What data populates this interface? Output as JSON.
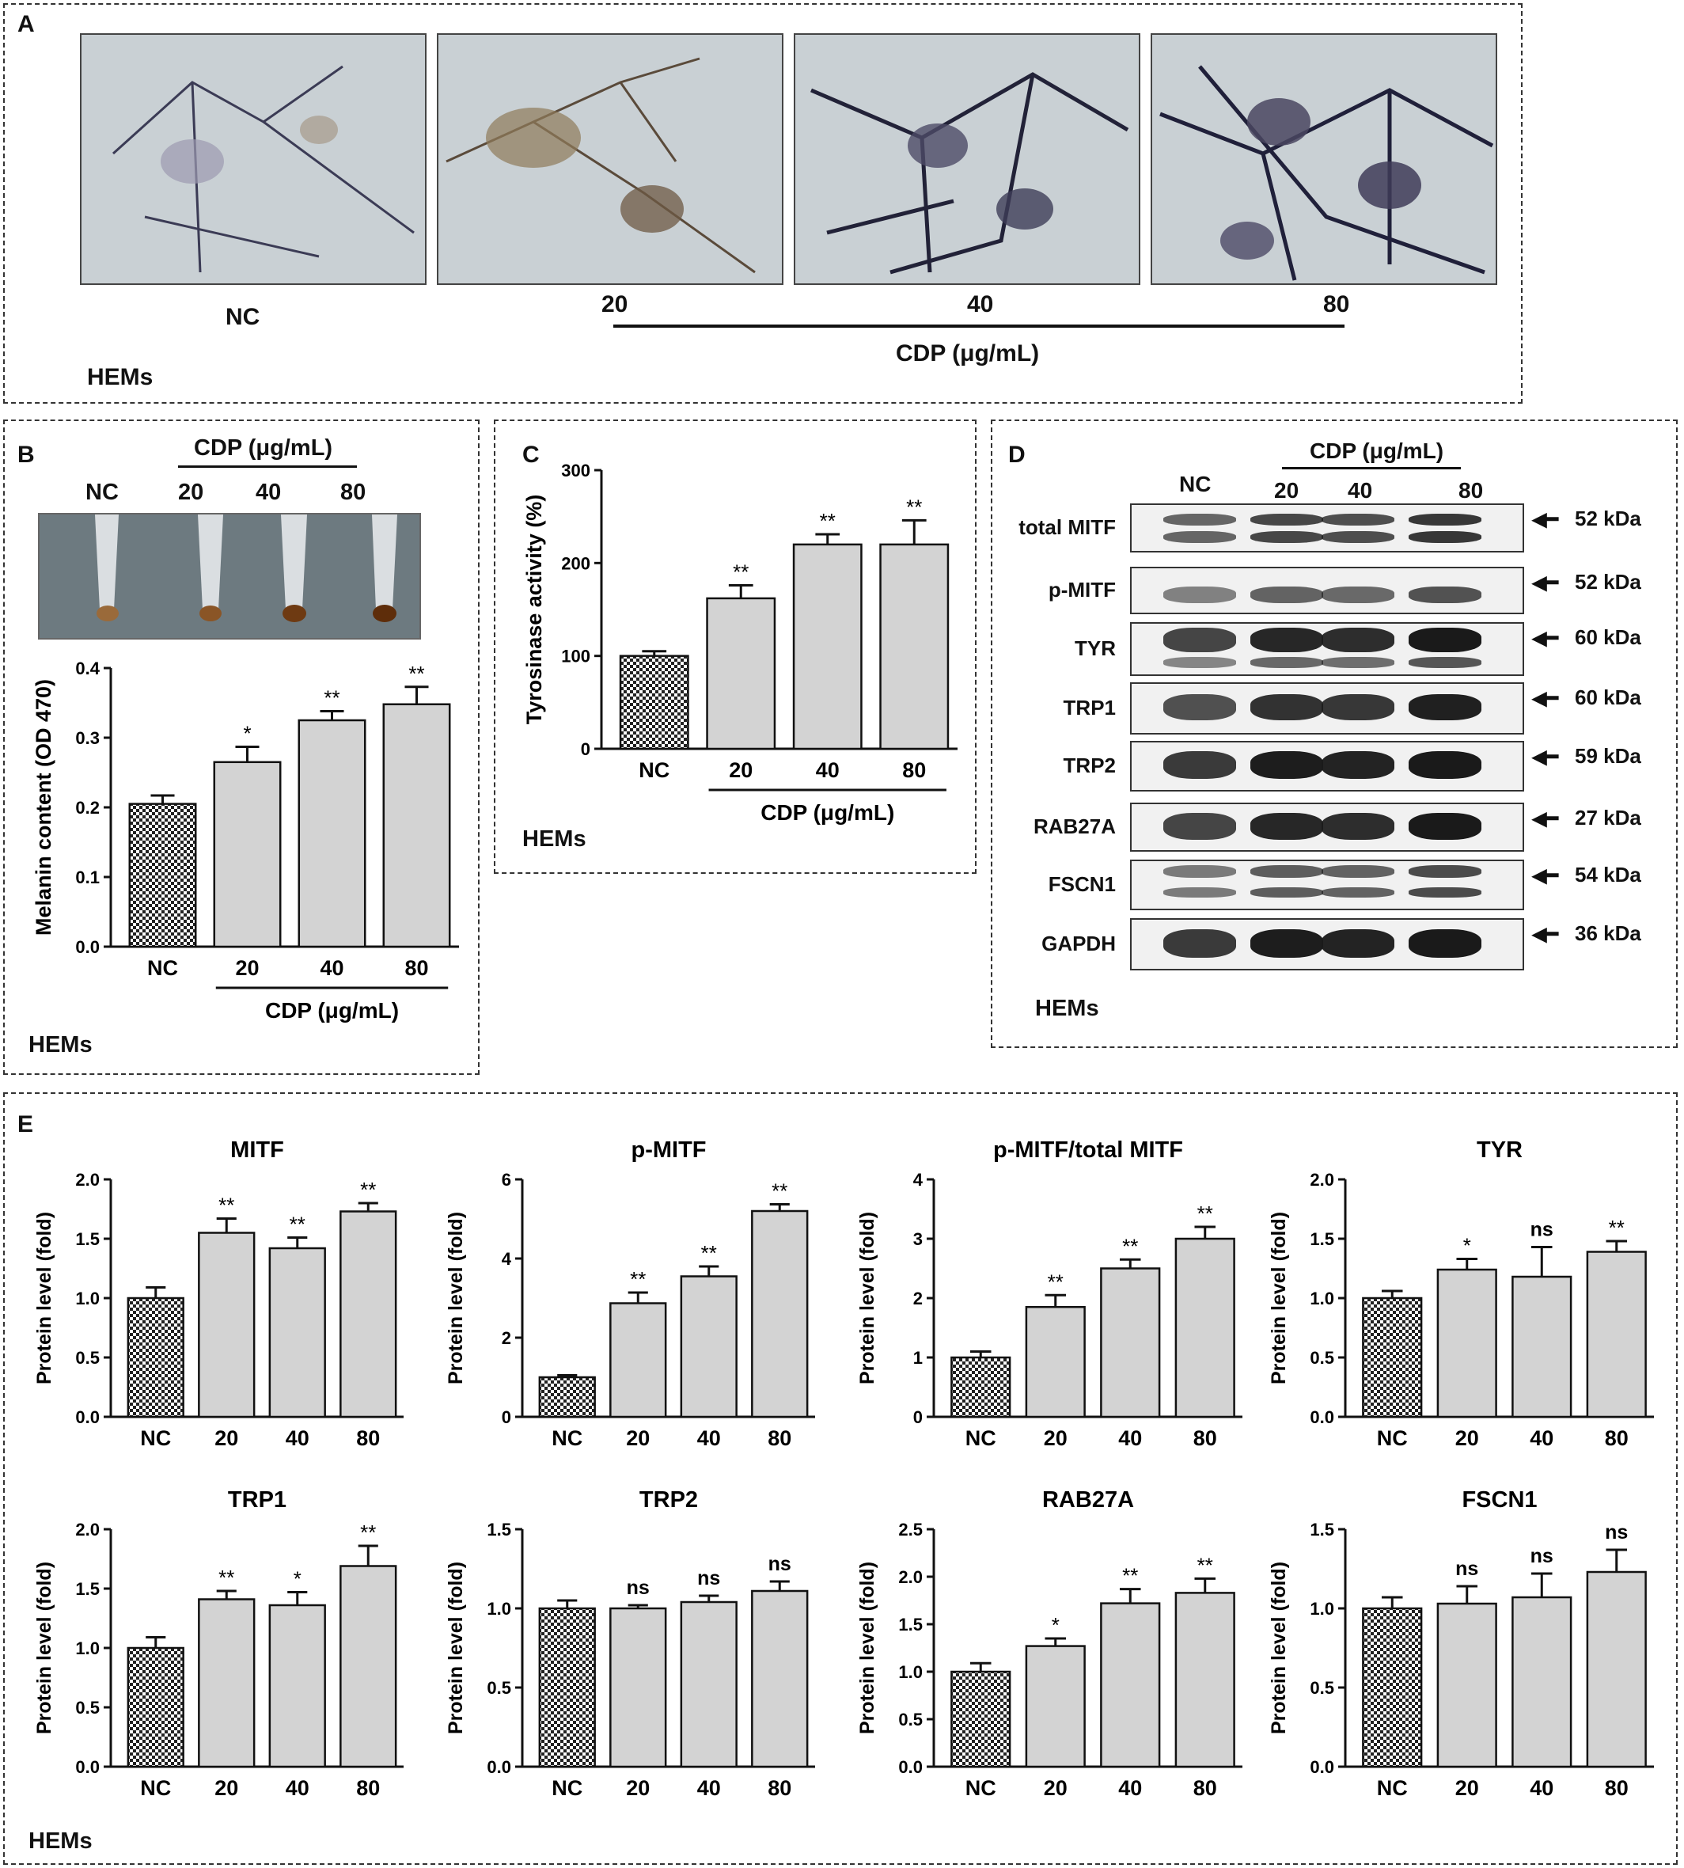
{
  "panelA": {
    "label": "A",
    "nc_label": "NC",
    "doses": [
      "20",
      "40",
      "80"
    ],
    "cdp_label": "CDP (μg/mL)",
    "cell_label": "HEMs"
  },
  "panelB": {
    "label": "B",
    "cdp_label": "CDP (μg/mL)",
    "tube_labels": [
      "NC",
      "20",
      "40",
      "80"
    ],
    "cell_label": "HEMs"
  },
  "panelC": {
    "label": "C",
    "cell_label": "HEMs"
  },
  "panelD": {
    "label": "D",
    "cdp_label": "CDP (μg/mL)",
    "lane_labels": [
      "NC",
      "20",
      "40",
      "80"
    ],
    "cell_label": "HEMs",
    "blots": [
      {
        "protein": "total MITF",
        "size": "52 kDa"
      },
      {
        "protein": "p-MITF",
        "size": "52 kDa"
      },
      {
        "protein": "TYR",
        "size": "60 kDa"
      },
      {
        "protein": "TRP1",
        "size": "60 kDa"
      },
      {
        "protein": "TRP2",
        "size": "59 kDa"
      },
      {
        "protein": "RAB27A",
        "size": "27 kDa"
      },
      {
        "protein": "FSCN1",
        "size": "54 kDa"
      },
      {
        "protein": "GAPDH",
        "size": "36 kDa"
      }
    ]
  },
  "panelE": {
    "label": "E",
    "cell_label": "HEMs"
  },
  "chart_data": [
    {
      "id": "B",
      "type": "bar",
      "categories": [
        "NC",
        "20",
        "40",
        "80"
      ],
      "values": [
        0.205,
        0.265,
        0.325,
        0.348
      ],
      "errors": [
        0.012,
        0.022,
        0.013,
        0.025
      ],
      "significance": [
        "",
        "*",
        "**",
        "**"
      ],
      "title": "",
      "ylabel": "Melanin content (OD 470)",
      "ylim": [
        0,
        0.4
      ],
      "yticks": [
        "0.0",
        "0.1",
        "0.2",
        "0.3",
        "0.4"
      ],
      "group_label": "CDP (μg/mL)"
    },
    {
      "id": "C",
      "type": "bar",
      "categories": [
        "NC",
        "20",
        "40",
        "80"
      ],
      "values": [
        100,
        162,
        220,
        220
      ],
      "errors": [
        5,
        14,
        11,
        26
      ],
      "significance": [
        "",
        "**",
        "**",
        "**"
      ],
      "title": "",
      "ylabel": "Tyrosinase activity (%)",
      "ylim": [
        0,
        300
      ],
      "yticks": [
        "0",
        "100",
        "200",
        "300"
      ],
      "group_label": "CDP (μg/mL)"
    },
    {
      "id": "E1",
      "type": "bar",
      "categories": [
        "NC",
        "20",
        "40",
        "80"
      ],
      "values": [
        1.0,
        1.55,
        1.42,
        1.73
      ],
      "errors": [
        0.09,
        0.12,
        0.09,
        0.07
      ],
      "significance": [
        "",
        "**",
        "**",
        "**"
      ],
      "title": "MITF",
      "ylabel": "Protein level (fold)",
      "ylim": [
        0,
        2.0
      ],
      "yticks": [
        "0.0",
        "0.5",
        "1.0",
        "1.5",
        "2.0"
      ]
    },
    {
      "id": "E2",
      "type": "bar",
      "categories": [
        "NC",
        "20",
        "40",
        "80"
      ],
      "values": [
        1.0,
        2.87,
        3.55,
        5.2
      ],
      "errors": [
        0.05,
        0.27,
        0.25,
        0.17
      ],
      "significance": [
        "",
        "**",
        "**",
        "**"
      ],
      "title": "p-MITF",
      "ylabel": "Protein level (fold)",
      "ylim": [
        0,
        6
      ],
      "yticks": [
        "0",
        "2",
        "4",
        "6"
      ]
    },
    {
      "id": "E3",
      "type": "bar",
      "categories": [
        "NC",
        "20",
        "40",
        "80"
      ],
      "values": [
        1.0,
        1.85,
        2.5,
        3.0
      ],
      "errors": [
        0.1,
        0.2,
        0.15,
        0.2
      ],
      "significance": [
        "",
        "**",
        "**",
        "**"
      ],
      "title": "p-MITF/total MITF",
      "ylabel": "Protein level (fold)",
      "ylim": [
        0,
        4
      ],
      "yticks": [
        "0",
        "1",
        "2",
        "3",
        "4"
      ]
    },
    {
      "id": "E4",
      "type": "bar",
      "categories": [
        "NC",
        "20",
        "40",
        "80"
      ],
      "values": [
        1.0,
        1.24,
        1.18,
        1.39
      ],
      "errors": [
        0.06,
        0.09,
        0.25,
        0.09
      ],
      "significance": [
        "",
        "*",
        "ns",
        "**"
      ],
      "title": "TYR",
      "ylabel": "Protein level (fold)",
      "ylim": [
        0,
        2.0
      ],
      "yticks": [
        "0.0",
        "0.5",
        "1.0",
        "1.5",
        "2.0"
      ]
    },
    {
      "id": "E5",
      "type": "bar",
      "categories": [
        "NC",
        "20",
        "40",
        "80"
      ],
      "values": [
        1.0,
        1.41,
        1.36,
        1.69
      ],
      "errors": [
        0.09,
        0.07,
        0.11,
        0.17
      ],
      "significance": [
        "",
        "**",
        "*",
        "**"
      ],
      "title": "TRP1",
      "ylabel": "Protein level (fold)",
      "ylim": [
        0,
        2.0
      ],
      "yticks": [
        "0.0",
        "0.5",
        "1.0",
        "1.5",
        "2.0"
      ]
    },
    {
      "id": "E6",
      "type": "bar",
      "categories": [
        "NC",
        "20",
        "40",
        "80"
      ],
      "values": [
        1.0,
        1.0,
        1.04,
        1.11
      ],
      "errors": [
        0.05,
        0.02,
        0.04,
        0.06
      ],
      "significance": [
        "",
        "ns",
        "ns",
        "ns"
      ],
      "title": "TRP2",
      "ylabel": "Protein level (fold)",
      "ylim": [
        0,
        1.5
      ],
      "yticks": [
        "0.0",
        "0.5",
        "1.0",
        "1.5"
      ]
    },
    {
      "id": "E7",
      "type": "bar",
      "categories": [
        "NC",
        "20",
        "40",
        "80"
      ],
      "values": [
        1.0,
        1.27,
        1.72,
        1.83
      ],
      "errors": [
        0.09,
        0.08,
        0.15,
        0.15
      ],
      "significance": [
        "",
        "*",
        "**",
        "**"
      ],
      "title": "RAB27A",
      "ylabel": "Protein level (fold)",
      "ylim": [
        0,
        2.5
      ],
      "yticks": [
        "0.0",
        "0.5",
        "1.0",
        "1.5",
        "2.0",
        "2.5"
      ]
    },
    {
      "id": "E8",
      "type": "bar",
      "categories": [
        "NC",
        "20",
        "40",
        "80"
      ],
      "values": [
        1.0,
        1.03,
        1.07,
        1.23
      ],
      "errors": [
        0.07,
        0.11,
        0.15,
        0.14
      ],
      "significance": [
        "",
        "ns",
        "ns",
        "ns"
      ],
      "title": "FSCN1",
      "ylabel": "Protein level (fold)",
      "ylim": [
        0,
        1.5
      ],
      "yticks": [
        "0.0",
        "0.5",
        "1.0",
        "1.5"
      ]
    }
  ]
}
